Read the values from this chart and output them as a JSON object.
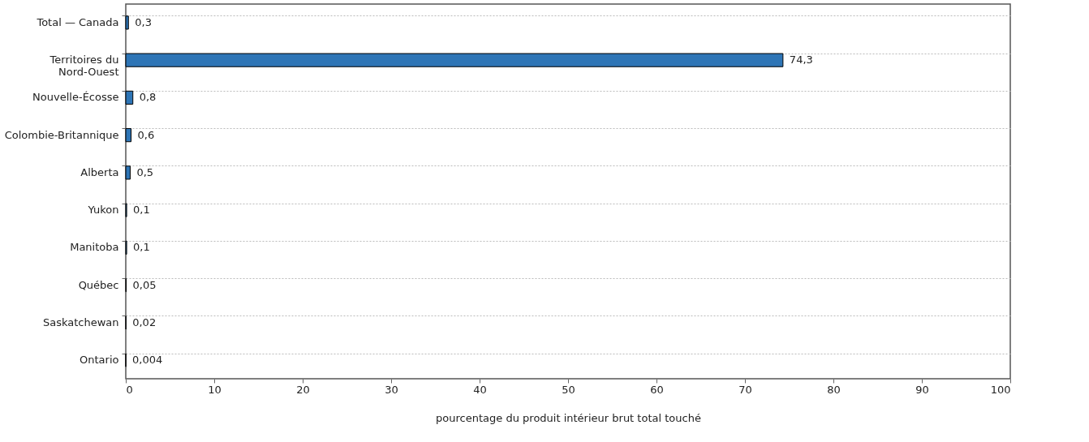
{
  "chart_data": {
    "type": "bar",
    "orientation": "horizontal",
    "xlabel": "pourcentage du produit intérieur brut total touché",
    "categories": [
      "Total — Canada",
      "Territoires du Nord-Ouest",
      "Nouvelle-Écosse",
      "Colombie-Britannique",
      "Alberta",
      "Yukon",
      "Manitoba",
      "Québec",
      "Saskatchewan",
      "Ontario"
    ],
    "values": [
      0.3,
      74.3,
      0.8,
      0.6,
      0.5,
      0.1,
      0.1,
      0.05,
      0.02,
      0.004
    ],
    "value_labels": [
      "0,3",
      "74,3",
      "0,8",
      "0,6",
      "0,5",
      "0,1",
      "0,1",
      "0,05",
      "0,02",
      "0,004"
    ],
    "color": "#2e75b6",
    "xlim": [
      0,
      100
    ],
    "xticks": [
      0,
      10,
      20,
      30,
      40,
      50,
      60,
      70,
      80,
      90,
      100
    ],
    "grid": "y"
  }
}
